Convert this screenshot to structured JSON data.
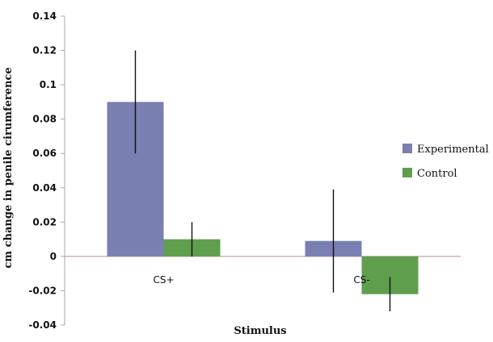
{
  "chart_data": {
    "type": "bar",
    "categories": [
      "CS+",
      "CS-"
    ],
    "series": [
      {
        "name": "Experimental",
        "values": [
          0.09,
          0.009
        ],
        "error": [
          0.03,
          0.03
        ]
      },
      {
        "name": "Control",
        "values": [
          0.01,
          -0.022
        ],
        "error": [
          0.01,
          0.01
        ]
      }
    ],
    "xlabel": "Stimulus",
    "ylabel": "cm change in penile cirumference",
    "ylim": [
      -0.04,
      0.14
    ],
    "yticks": [
      -0.04,
      -0.02,
      0,
      0.02,
      0.04,
      0.06,
      0.08,
      0.1,
      0.12,
      0.14
    ],
    "ytick_labels": [
      "-0.04",
      "-0.02",
      "0",
      "0.02",
      "0.04",
      "0.06",
      "0.08",
      "0.1",
      "0.12",
      "0.14"
    ],
    "grid": false,
    "legend_position": "right",
    "colors": {
      "Experimental": "#7a7fb2",
      "Control": "#5f9e4d",
      "axis": "#a9a9a9",
      "zero_line": "#c9a0a8",
      "error_bar": "#111111"
    }
  }
}
